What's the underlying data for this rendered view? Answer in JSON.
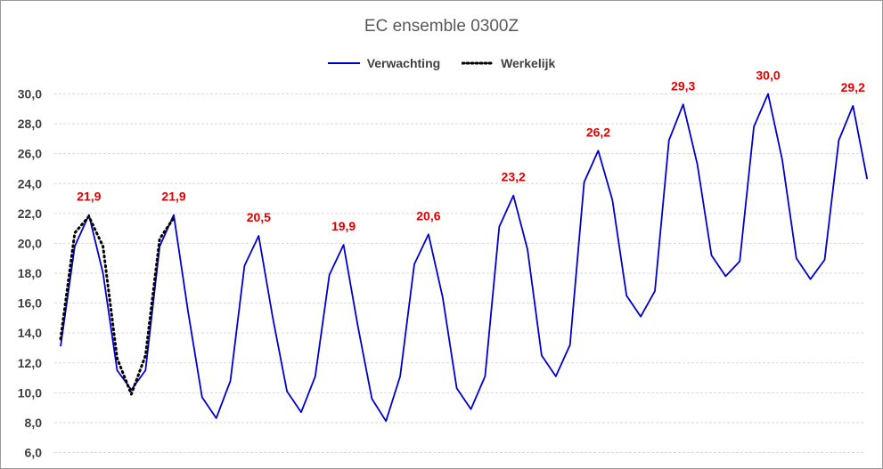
{
  "chart_data": {
    "type": "line",
    "title": "EC ensemble 0300Z",
    "xlabel": "",
    "ylabel": "",
    "ylim": [
      6,
      31
    ],
    "yticks": [
      "6,0",
      "8,0",
      "10,0",
      "12,0",
      "14,0",
      "16,0",
      "18,0",
      "20,0",
      "22,0",
      "24,0",
      "26,0",
      "28,0",
      "30,0"
    ],
    "grid": true,
    "legend_position": "top",
    "series": [
      {
        "name": "Verwachting",
        "color": "#0000cc",
        "style": "solid",
        "values": [
          13.1,
          19.8,
          21.9,
          18.0,
          11.5,
          10.2,
          11.5,
          19.8,
          21.9,
          15.5,
          9.7,
          8.3,
          10.8,
          18.5,
          20.5,
          15.0,
          10.1,
          8.7,
          11.1,
          17.9,
          19.9,
          14.5,
          9.6,
          8.1,
          11.1,
          18.6,
          20.6,
          16.4,
          10.3,
          8.9,
          11.1,
          21.1,
          23.2,
          19.6,
          12.5,
          11.1,
          13.2,
          24.1,
          26.2,
          22.9,
          16.5,
          15.1,
          16.8,
          26.9,
          29.3,
          25.3,
          19.2,
          17.8,
          18.8,
          27.8,
          30.0,
          25.6,
          19.0,
          17.6,
          18.9,
          26.9,
          29.2,
          24.3
        ]
      },
      {
        "name": "Werkelijk",
        "color": "#000000",
        "style": "dotted",
        "values": [
          13.6,
          20.7,
          21.8,
          19.8,
          12.3,
          9.9,
          12.5,
          20.3,
          21.7
        ]
      }
    ],
    "data_labels": [
      {
        "series": 0,
        "index": 2,
        "text": "21,9"
      },
      {
        "series": 0,
        "index": 8,
        "text": "21,9"
      },
      {
        "series": 0,
        "index": 14,
        "text": "20,5"
      },
      {
        "series": 0,
        "index": 20,
        "text": "19,9"
      },
      {
        "series": 0,
        "index": 26,
        "text": "20,6"
      },
      {
        "series": 0,
        "index": 32,
        "text": "23,2"
      },
      {
        "series": 0,
        "index": 38,
        "text": "26,2"
      },
      {
        "series": 0,
        "index": 44,
        "text": "29,3"
      },
      {
        "series": 0,
        "index": 50,
        "text": "30,0"
      },
      {
        "series": 0,
        "index": 56,
        "text": "29,2"
      }
    ]
  }
}
